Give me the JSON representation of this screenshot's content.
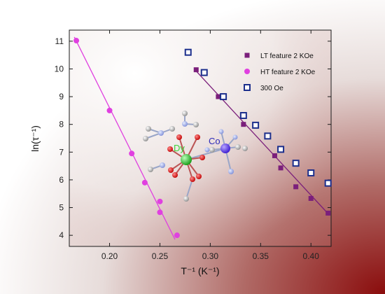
{
  "chart_data": {
    "type": "scatter",
    "xlabel": "T⁻¹ (K⁻¹)",
    "ylabel": "ln(τ⁻¹)",
    "xlim": [
      0.16,
      0.42
    ],
    "ylim": [
      3.6,
      11.4
    ],
    "x_ticks": [
      "0.20",
      "0.25",
      "0.30",
      "0.35",
      "0.40"
    ],
    "y_ticks": [
      "4",
      "5",
      "6",
      "7",
      "8",
      "9",
      "10",
      "11"
    ],
    "legend_position": "top-right",
    "series": [
      {
        "name": "LT feature 2 KOe",
        "marker": "square-filled",
        "color": "#7b1f7b",
        "points": [
          [
            0.286,
            9.97
          ],
          [
            0.308,
            9.0
          ],
          [
            0.333,
            8.0
          ],
          [
            0.364,
            6.87
          ],
          [
            0.37,
            6.43
          ],
          [
            0.385,
            5.75
          ],
          [
            0.4,
            5.33
          ],
          [
            0.417,
            4.8
          ]
        ],
        "fit": [
          [
            0.284,
            10.0
          ],
          [
            0.417,
            4.78
          ]
        ]
      },
      {
        "name": "HT feature 2 KOe",
        "marker": "circle-filled",
        "color": "#e040e0",
        "points": [
          [
            0.167,
            11.02
          ],
          [
            0.2,
            8.5
          ],
          [
            0.222,
            6.95
          ],
          [
            0.235,
            5.9
          ],
          [
            0.25,
            5.22
          ],
          [
            0.25,
            4.83
          ],
          [
            0.267,
            4.0
          ]
        ],
        "fit": [
          [
            0.165,
            11.15
          ],
          [
            0.265,
            3.85
          ]
        ]
      },
      {
        "name": "300 Oe",
        "marker": "square-open",
        "color": "#1c2f8c",
        "points": [
          [
            0.278,
            10.6
          ],
          [
            0.294,
            9.87
          ],
          [
            0.313,
            9.0
          ],
          [
            0.333,
            8.32
          ],
          [
            0.345,
            7.97
          ],
          [
            0.357,
            7.58
          ],
          [
            0.37,
            7.1
          ],
          [
            0.385,
            6.6
          ],
          [
            0.4,
            6.25
          ],
          [
            0.417,
            5.88
          ]
        ]
      }
    ],
    "annotations": [
      "Dy",
      "Co"
    ]
  },
  "colors": {
    "dy_label": "#39d43a",
    "co_label": "#2d2ab8",
    "background_shadow": "#8a0c0c"
  }
}
